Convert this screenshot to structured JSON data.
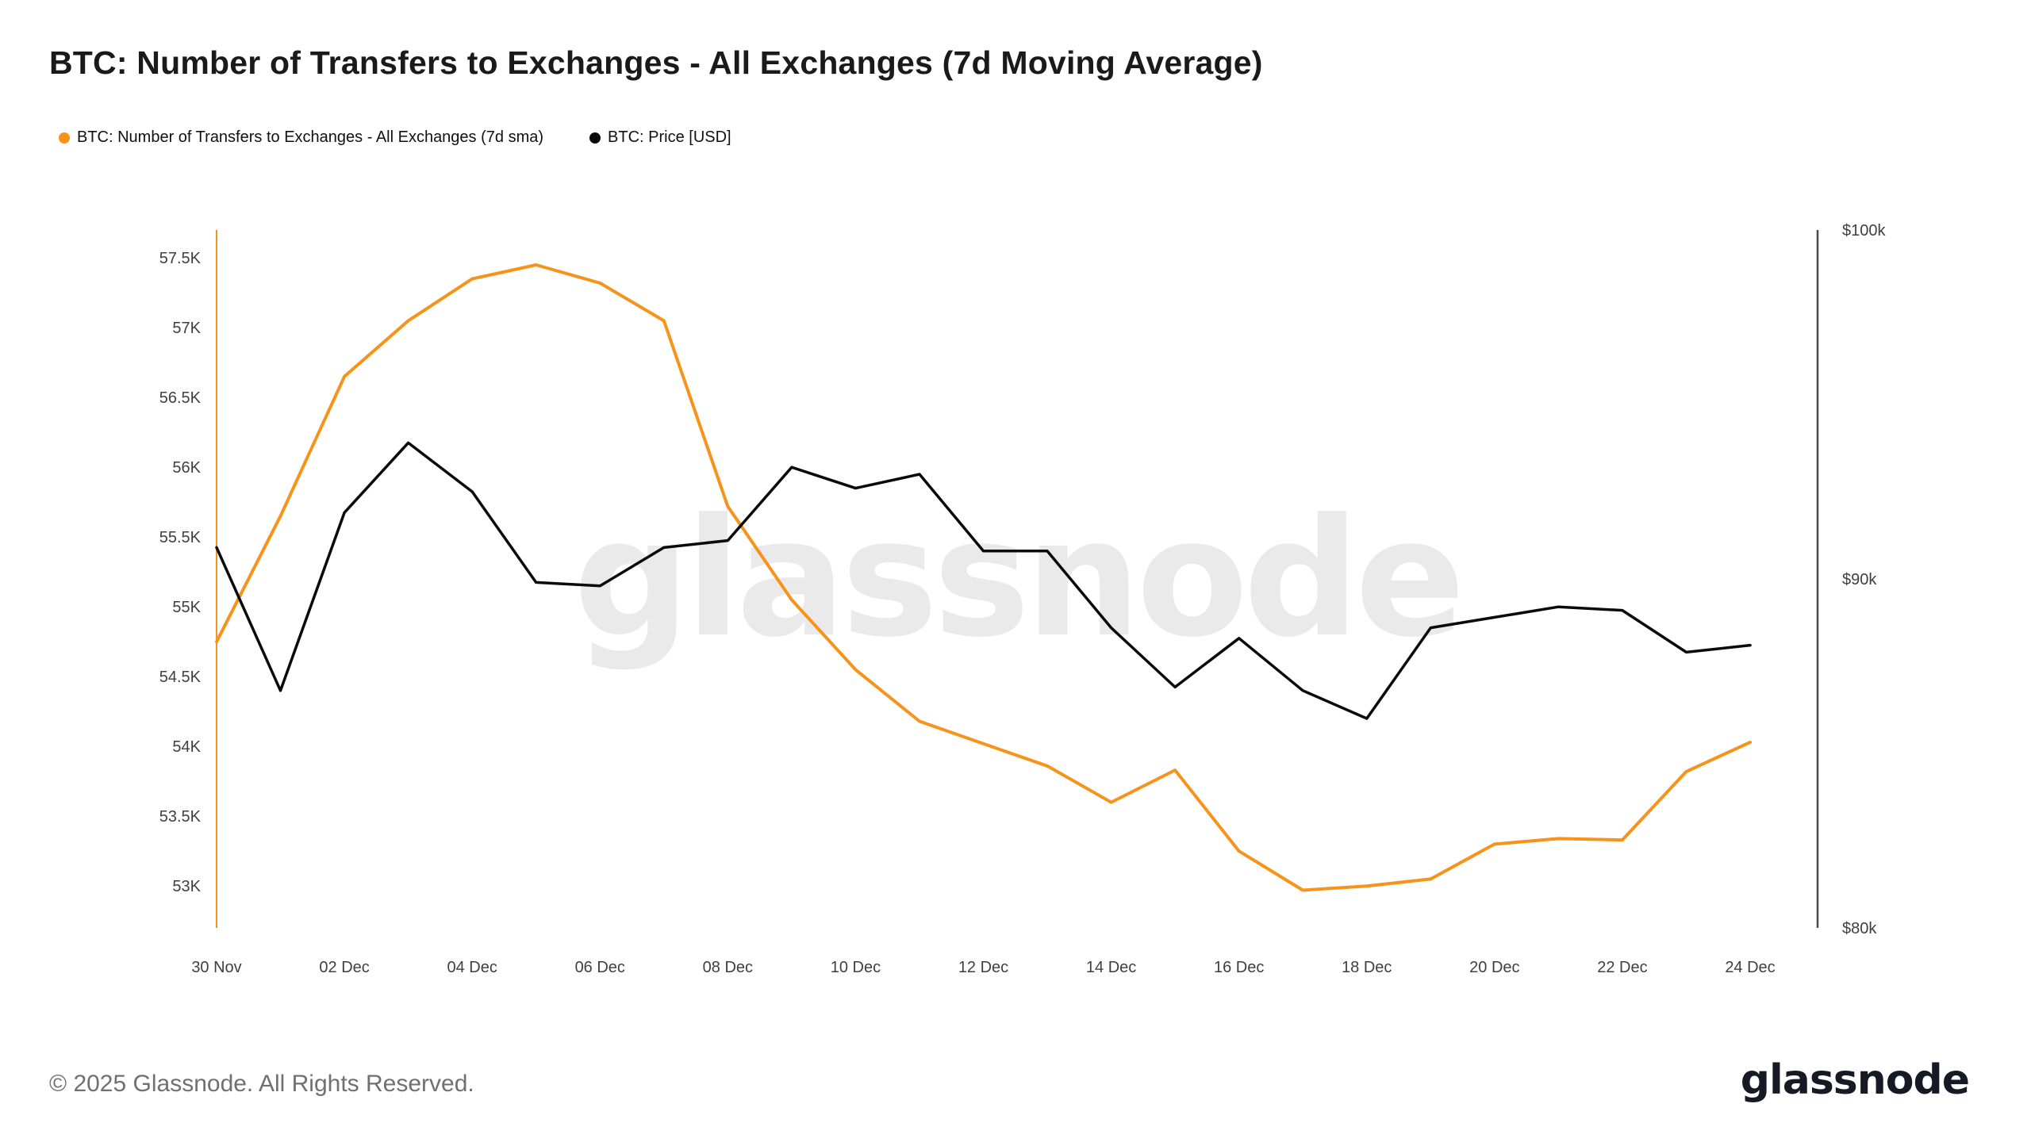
{
  "page": {
    "title": "BTC: Number of Transfers to Exchanges - All Exchanges (7d Moving Average)",
    "watermark": "glassnode",
    "footer_copyright": "© 2025 Glassnode. All Rights Reserved.",
    "logo_text": "glassnode"
  },
  "legend": {
    "position": "top-left",
    "items": [
      {
        "label": "BTC: Number of Transfers to Exchanges - All Exchanges (7d sma)",
        "color": "#f7931a"
      },
      {
        "label": "BTC: Price [USD]",
        "color": "#0a0a0a"
      }
    ]
  },
  "colors": {
    "transfers_line": "#f7931a",
    "price_line": "#0a0a0a",
    "left_axis_spine": "#f7931a",
    "right_axis_spine": "#4a4a4a",
    "axis_label": "#3f3f3f",
    "watermark": "#eaeaea"
  },
  "chart_data": {
    "type": "line",
    "title": "BTC: Number of Transfers to Exchanges - All Exchanges (7d Moving Average)",
    "grid": false,
    "legend_position": "top-left",
    "x": [
      "30 Nov",
      "01 Dec",
      "02 Dec",
      "03 Dec",
      "04 Dec",
      "05 Dec",
      "06 Dec",
      "07 Dec",
      "08 Dec",
      "09 Dec",
      "10 Dec",
      "11 Dec",
      "12 Dec",
      "13 Dec",
      "14 Dec",
      "15 Dec",
      "16 Dec",
      "17 Dec",
      "18 Dec",
      "19 Dec",
      "20 Dec",
      "21 Dec",
      "22 Dec",
      "23 Dec",
      "24 Dec"
    ],
    "series": [
      {
        "name": "BTC: Number of Transfers to Exchanges - All Exchanges (7d sma)",
        "axis": "left",
        "unit": "K transfers",
        "values": [
          54.75,
          55.65,
          56.65,
          57.05,
          57.35,
          57.45,
          57.32,
          57.05,
          55.72,
          55.05,
          54.55,
          54.18,
          54.02,
          53.86,
          53.6,
          53.83,
          53.25,
          52.97,
          53.0,
          53.05,
          53.3,
          53.34,
          53.33,
          53.82,
          54.03
        ]
      },
      {
        "name": "BTC: Price [USD]",
        "axis": "right",
        "unit": "$k",
        "values": [
          90.9,
          86.8,
          91.9,
          93.9,
          92.5,
          89.9,
          89.8,
          90.9,
          91.1,
          93.2,
          92.6,
          93.0,
          90.8,
          90.8,
          88.6,
          86.9,
          88.3,
          86.8,
          86.0,
          88.6,
          88.9,
          89.2,
          89.1,
          87.9,
          88.1
        ]
      }
    ],
    "left_axis": {
      "min": 52.7,
      "max": 57.7,
      "ticks": [
        {
          "v": 57.5,
          "label": "57.5K"
        },
        {
          "v": 57.0,
          "label": "57K"
        },
        {
          "v": 56.5,
          "label": "56.5K"
        },
        {
          "v": 56.0,
          "label": "56K"
        },
        {
          "v": 55.5,
          "label": "55.5K"
        },
        {
          "v": 55.0,
          "label": "55K"
        },
        {
          "v": 54.5,
          "label": "54.5K"
        },
        {
          "v": 54.0,
          "label": "54K"
        },
        {
          "v": 53.5,
          "label": "53.5K"
        },
        {
          "v": 53.0,
          "label": "53K"
        }
      ]
    },
    "right_axis": {
      "min": 80,
      "max": 100,
      "ticks": [
        {
          "v": 100,
          "label": "$100k"
        },
        {
          "v": 90,
          "label": "$90k"
        },
        {
          "v": 80,
          "label": "$80k"
        }
      ]
    },
    "x_ticks": [
      {
        "i": 0,
        "label": "30 Nov"
      },
      {
        "i": 2,
        "label": "02 Dec"
      },
      {
        "i": 4,
        "label": "04 Dec"
      },
      {
        "i": 6,
        "label": "06 Dec"
      },
      {
        "i": 8,
        "label": "08 Dec"
      },
      {
        "i": 10,
        "label": "10 Dec"
      },
      {
        "i": 12,
        "label": "12 Dec"
      },
      {
        "i": 14,
        "label": "14 Dec"
      },
      {
        "i": 16,
        "label": "16 Dec"
      },
      {
        "i": 18,
        "label": "18 Dec"
      },
      {
        "i": 20,
        "label": "20 Dec"
      },
      {
        "i": 22,
        "label": "22 Dec"
      },
      {
        "i": 24,
        "label": "24 Dec"
      }
    ]
  }
}
